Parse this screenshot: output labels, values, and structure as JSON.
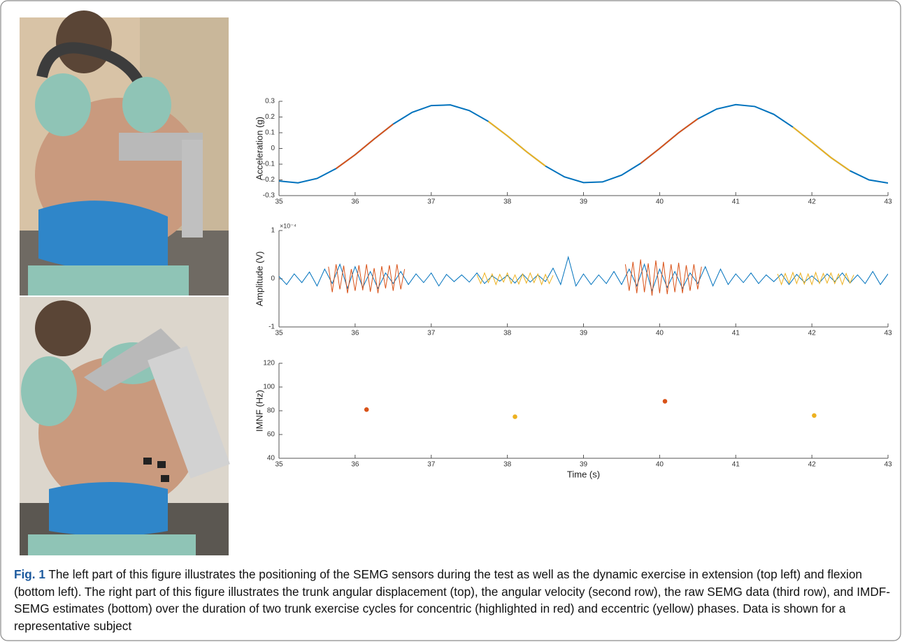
{
  "chart_data": [
    {
      "type": "line",
      "y_label": "Acceleration (g)",
      "xlim": [
        35,
        43
      ],
      "xticks": [
        35,
        36,
        37,
        38,
        39,
        40,
        41,
        42,
        43
      ],
      "ylim": [
        -0.3,
        0.3
      ],
      "yticks": [
        -0.3,
        -0.2,
        -0.1,
        0,
        0.1,
        0.2,
        0.3
      ],
      "series": [
        {
          "color": "#0072bd",
          "x": [
            35,
            35.25,
            35.5,
            35.75,
            36,
            36.25,
            36.5,
            36.75,
            37,
            37.25,
            37.5,
            37.75,
            38,
            38.25,
            38.5,
            38.75,
            39,
            39.25,
            39.5,
            39.75,
            40,
            40.25,
            40.5,
            40.75,
            41,
            41.25,
            41.5,
            41.75,
            42,
            42.25,
            42.5,
            42.75,
            43
          ],
          "values": [
            -0.207,
            -0.219,
            -0.191,
            -0.128,
            -0.04,
            0.06,
            0.155,
            0.23,
            0.273,
            0.277,
            0.241,
            0.172,
            0.08,
            -0.02,
            -0.112,
            -0.181,
            -0.217,
            -0.213,
            -0.17,
            -0.095,
            0,
            0.1,
            0.188,
            0.251,
            0.279,
            0.267,
            0.217,
            0.136,
            0.04,
            -0.058,
            -0.142,
            -0.2,
            -0.22
          ]
        },
        {
          "color": "#d95319",
          "x": [
            35.75,
            36,
            36.25,
            36.5
          ],
          "values": [
            -0.128,
            -0.04,
            0.06,
            0.155
          ]
        },
        {
          "color": "#edb120",
          "x": [
            37.75,
            38,
            38.25,
            38.5
          ],
          "values": [
            0.172,
            0.08,
            -0.02,
            -0.112
          ]
        },
        {
          "color": "#d95319",
          "x": [
            39.75,
            40,
            40.25,
            40.5
          ],
          "values": [
            -0.095,
            0,
            0.1,
            0.188
          ]
        },
        {
          "color": "#edb120",
          "x": [
            41.75,
            42,
            42.25,
            42.5
          ],
          "values": [
            0.136,
            0.04,
            -0.058,
            -0.142
          ]
        }
      ]
    },
    {
      "type": "line",
      "y_label": "Amplitude (V)",
      "y_exponent": "×10⁻⁴",
      "xlim": [
        35,
        43
      ],
      "xticks": [
        35,
        36,
        37,
        38,
        39,
        40,
        41,
        42,
        43
      ],
      "ylim": [
        -1,
        1
      ],
      "yticks": [
        -1,
        0,
        1
      ],
      "series": [
        {
          "color": "#0072bd",
          "x": [
            35,
            35.1,
            35.2,
            35.3,
            35.4,
            35.5,
            35.6,
            35.7,
            35.8,
            35.9,
            36,
            36.1,
            36.2,
            36.3,
            36.4,
            36.5,
            36.6,
            36.7,
            36.8,
            36.9,
            37,
            37.1,
            37.2,
            37.3,
            37.4,
            37.5,
            37.6,
            37.7,
            37.8,
            37.9,
            38,
            38.1,
            38.2,
            38.3,
            38.4,
            38.5,
            38.6,
            38.7,
            38.8,
            38.9,
            39,
            39.1,
            39.2,
            39.3,
            39.4,
            39.5,
            39.6,
            39.7,
            39.8,
            39.9,
            40,
            40.1,
            40.2,
            40.3,
            40.4,
            40.5,
            40.6,
            40.7,
            40.8,
            40.9,
            41,
            41.1,
            41.2,
            41.3,
            41.4,
            41.5,
            41.6,
            41.7,
            41.8,
            41.9,
            42,
            42.1,
            42.2,
            42.3,
            42.4,
            42.5,
            42.6,
            42.7,
            42.8,
            42.9,
            43
          ],
          "values": [
            0.05,
            -0.12,
            0.1,
            -0.08,
            0.14,
            -0.15,
            0.2,
            -0.1,
            0.3,
            -0.2,
            0.25,
            -0.18,
            0.15,
            -0.2,
            0.12,
            -0.1,
            0.15,
            -0.12,
            0.1,
            -0.08,
            0.12,
            -0.15,
            0.09,
            -0.06,
            0.08,
            -0.07,
            0.12,
            -0.1,
            0.06,
            -0.05,
            0.07,
            -0.09,
            0.1,
            -0.07,
            0.08,
            -0.06,
            0.22,
            -0.12,
            0.45,
            -0.15,
            0.1,
            -0.12,
            0.08,
            -0.1,
            0.15,
            -0.12,
            0.2,
            -0.15,
            0.3,
            -0.25,
            0.2,
            -0.18,
            0.15,
            -0.2,
            0.12,
            -0.1,
            0.25,
            -0.15,
            0.2,
            -0.12,
            0.1,
            -0.08,
            0.12,
            -0.1,
            0.08,
            -0.06,
            0.1,
            -0.12,
            0.09,
            -0.07,
            0.06,
            -0.08,
            0.1,
            -0.06,
            0.12,
            -0.09,
            0.08,
            -0.1,
            0.15,
            -0.12,
            0.1
          ]
        },
        {
          "color": "#d95319",
          "x": [
            35.65,
            35.7,
            35.75,
            35.8,
            35.85,
            35.9,
            35.95,
            36,
            36.05,
            36.1,
            36.15,
            36.2,
            36.25,
            36.3,
            36.35,
            36.4,
            36.45,
            36.5,
            36.55,
            36.6,
            36.65
          ],
          "values": [
            0.25,
            -0.28,
            0.3,
            -0.22,
            0.27,
            -0.3,
            0.2,
            -0.25,
            0.28,
            -0.24,
            0.3,
            -0.27,
            0.22,
            -0.3,
            0.26,
            -0.2,
            0.28,
            -0.25,
            0.3,
            -0.22,
            0.2
          ]
        },
        {
          "color": "#edb120",
          "x": [
            37.6,
            37.65,
            37.7,
            37.75,
            37.8,
            37.85,
            37.9,
            37.95,
            38,
            38.05,
            38.1,
            38.15,
            38.2,
            38.25,
            38.3,
            38.35,
            38.4,
            38.45,
            38.5,
            38.55,
            38.6
          ],
          "values": [
            0.08,
            -0.1,
            0.12,
            -0.08,
            0.1,
            -0.12,
            0.09,
            -0.07,
            0.12,
            -0.1,
            0.08,
            -0.11,
            0.1,
            -0.09,
            0.12,
            -0.08,
            0.1,
            -0.12,
            0.09,
            -0.1,
            0.07
          ]
        },
        {
          "color": "#d95319",
          "x": [
            39.55,
            39.6,
            39.65,
            39.7,
            39.75,
            39.8,
            39.85,
            39.9,
            39.95,
            40,
            40.05,
            40.1,
            40.15,
            40.2,
            40.25,
            40.3,
            40.35,
            40.4,
            40.45,
            40.5,
            40.55
          ],
          "values": [
            0.3,
            -0.25,
            0.35,
            -0.3,
            0.4,
            -0.28,
            0.32,
            -0.35,
            0.38,
            -0.3,
            0.35,
            -0.32,
            0.3,
            -0.28,
            0.33,
            -0.3,
            0.28,
            -0.25,
            0.3,
            -0.22,
            0.25
          ]
        },
        {
          "color": "#edb120",
          "x": [
            41.55,
            41.6,
            41.65,
            41.7,
            41.75,
            41.8,
            41.85,
            41.9,
            41.95,
            42,
            42.05,
            42.1,
            42.15,
            42.2,
            42.25,
            42.3,
            42.35,
            42.4,
            42.45,
            42.5,
            42.55
          ],
          "values": [
            0.1,
            -0.12,
            0.11,
            -0.09,
            0.13,
            -0.1,
            0.12,
            -0.11,
            0.1,
            -0.12,
            0.13,
            -0.1,
            0.11,
            -0.09,
            0.12,
            -0.1,
            0.1,
            -0.12,
            0.11,
            -0.09,
            0.08
          ]
        }
      ]
    },
    {
      "type": "scatter",
      "y_label": "IMNF (Hz)",
      "x_label": "Time (s)",
      "xlim": [
        35,
        43
      ],
      "xticks": [
        35,
        36,
        37,
        38,
        39,
        40,
        41,
        42,
        43
      ],
      "ylim": [
        40,
        120
      ],
      "yticks": [
        40,
        60,
        80,
        100,
        120
      ],
      "series": [
        {
          "color": "#d95319",
          "x": [
            36.15,
            40.07
          ],
          "values": [
            81,
            88
          ]
        },
        {
          "color": "#edb120",
          "x": [
            38.1,
            42.03
          ],
          "values": [
            75,
            76
          ]
        }
      ]
    }
  ],
  "caption": {
    "label": "Fig. 1",
    "text": "The left part of this figure illustrates the positioning of the SEMG sensors during the test as well as the dynamic exercise in extension (top left) and flexion (bottom left). The right part of this figure illustrates the trunk angular displacement (top), the angular velocity (second row), the raw SEMG data (third row), and IMDF-SEMG estimates (bottom) over the duration of two trunk exercise cycles for concentric (highlighted in red) and eccentric (yellow) phases. Data is shown for a representative subject"
  }
}
